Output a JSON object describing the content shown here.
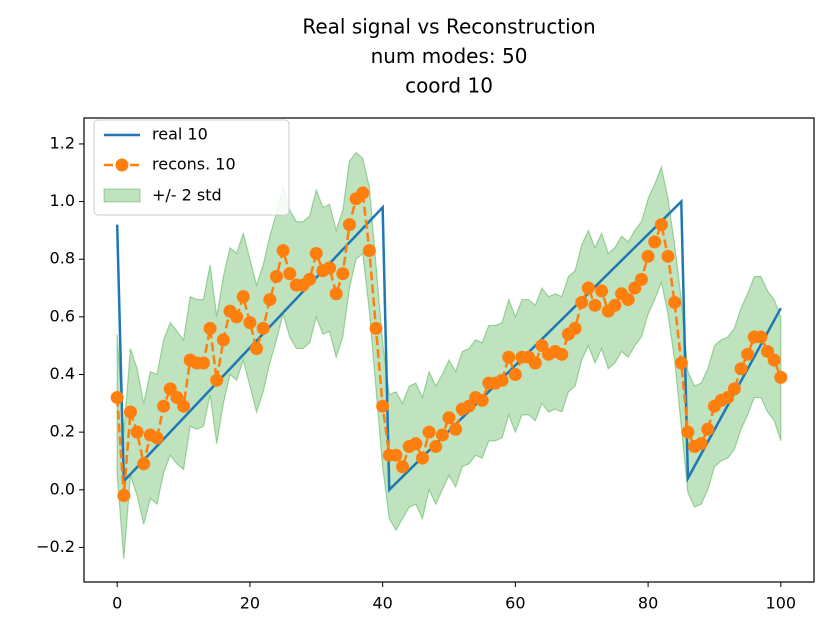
{
  "chart_data": {
    "type": "line",
    "title": [
      "Real signal vs Reconstruction",
      "num modes: 50",
      "coord 10"
    ],
    "x": [
      0,
      1,
      2,
      3,
      4,
      5,
      6,
      7,
      8,
      9,
      10,
      11,
      12,
      13,
      14,
      15,
      16,
      17,
      18,
      19,
      20,
      21,
      22,
      23,
      24,
      25,
      26,
      27,
      28,
      29,
      30,
      31,
      32,
      33,
      34,
      35,
      36,
      37,
      38,
      39,
      40,
      41,
      42,
      43,
      44,
      45,
      46,
      47,
      48,
      49,
      50,
      51,
      52,
      53,
      54,
      55,
      56,
      57,
      58,
      59,
      60,
      61,
      62,
      63,
      64,
      65,
      66,
      67,
      68,
      69,
      70,
      71,
      72,
      73,
      74,
      75,
      76,
      77,
      78,
      79,
      80,
      81,
      82,
      83,
      84,
      85,
      86,
      87,
      88,
      89,
      90,
      91,
      92,
      93,
      94,
      95,
      96,
      97,
      98,
      99,
      100
    ],
    "series": [
      {
        "name": "real 10",
        "color": "#1f77b4",
        "x": [
          0,
          1,
          40,
          41,
          85,
          86,
          100
        ],
        "values": [
          0.92,
          0.03,
          0.98,
          0.0,
          1.0,
          0.04,
          0.63
        ]
      },
      {
        "name": "recons. 10",
        "color": "#ff7f0e",
        "linestyle": "dashed",
        "marker": "o",
        "values": [
          0.32,
          -0.02,
          0.27,
          0.2,
          0.09,
          0.19,
          0.18,
          0.29,
          0.35,
          0.32,
          0.29,
          0.45,
          0.44,
          0.44,
          0.56,
          0.38,
          0.52,
          0.62,
          0.6,
          0.67,
          0.58,
          0.49,
          0.56,
          0.66,
          0.74,
          0.83,
          0.75,
          0.71,
          0.71,
          0.73,
          0.82,
          0.76,
          0.77,
          0.68,
          0.75,
          0.92,
          1.01,
          1.03,
          0.83,
          0.56,
          0.29,
          0.12,
          0.12,
          0.08,
          0.15,
          0.16,
          0.11,
          0.2,
          0.15,
          0.19,
          0.25,
          0.21,
          0.28,
          0.29,
          0.32,
          0.31,
          0.37,
          0.37,
          0.38,
          0.46,
          0.4,
          0.46,
          0.46,
          0.44,
          0.5,
          0.47,
          0.48,
          0.47,
          0.54,
          0.56,
          0.65,
          0.7,
          0.64,
          0.69,
          0.62,
          0.64,
          0.68,
          0.66,
          0.7,
          0.73,
          0.81,
          0.86,
          0.92,
          0.81,
          0.65,
          0.44,
          0.2,
          0.15,
          0.16,
          0.21,
          0.29,
          0.31,
          0.32,
          0.35,
          0.42,
          0.47,
          0.53,
          0.53,
          0.48,
          0.45,
          0.39
        ]
      }
    ],
    "band": {
      "name": "+/- 2 std",
      "color": "#2ca02c",
      "lower": [
        0.05,
        -0.24,
        0.05,
        -0.02,
        -0.12,
        -0.03,
        -0.05,
        0.06,
        0.12,
        0.09,
        0.07,
        0.22,
        0.21,
        0.22,
        0.33,
        0.16,
        0.3,
        0.4,
        0.38,
        0.45,
        0.36,
        0.27,
        0.34,
        0.44,
        0.52,
        0.61,
        0.53,
        0.49,
        0.49,
        0.51,
        0.6,
        0.54,
        0.55,
        0.46,
        0.53,
        0.7,
        0.8,
        0.82,
        0.62,
        0.35,
        0.08,
        -0.1,
        -0.14,
        -0.1,
        -0.06,
        -0.05,
        -0.1,
        0.0,
        -0.05,
        0.0,
        0.05,
        0.01,
        0.08,
        0.09,
        0.12,
        0.11,
        0.17,
        0.17,
        0.18,
        0.26,
        0.2,
        0.26,
        0.26,
        0.24,
        0.3,
        0.27,
        0.28,
        0.27,
        0.34,
        0.36,
        0.45,
        0.5,
        0.44,
        0.49,
        0.42,
        0.44,
        0.48,
        0.46,
        0.5,
        0.53,
        0.61,
        0.66,
        0.72,
        0.61,
        0.45,
        0.22,
        -0.01,
        -0.06,
        -0.05,
        0.0,
        0.08,
        0.1,
        0.11,
        0.14,
        0.21,
        0.26,
        0.32,
        0.32,
        0.27,
        0.24,
        0.17
      ],
      "upper": [
        0.54,
        0.2,
        0.49,
        0.42,
        0.3,
        0.41,
        0.4,
        0.52,
        0.58,
        0.55,
        0.52,
        0.67,
        0.66,
        0.66,
        0.78,
        0.6,
        0.74,
        0.84,
        0.82,
        0.89,
        0.8,
        0.71,
        0.78,
        0.88,
        0.96,
        1.05,
        0.97,
        0.93,
        0.93,
        0.95,
        1.04,
        0.98,
        0.99,
        0.9,
        0.97,
        1.14,
        1.17,
        1.15,
        1.05,
        0.78,
        0.51,
        0.33,
        0.34,
        0.3,
        0.36,
        0.37,
        0.32,
        0.41,
        0.36,
        0.4,
        0.45,
        0.41,
        0.48,
        0.49,
        0.52,
        0.51,
        0.57,
        0.57,
        0.58,
        0.66,
        0.6,
        0.66,
        0.66,
        0.64,
        0.7,
        0.67,
        0.68,
        0.67,
        0.74,
        0.76,
        0.85,
        0.9,
        0.84,
        0.89,
        0.82,
        0.84,
        0.88,
        0.86,
        0.9,
        0.93,
        1.01,
        1.06,
        1.12,
        1.01,
        0.85,
        0.66,
        0.41,
        0.36,
        0.37,
        0.42,
        0.5,
        0.52,
        0.53,
        0.56,
        0.63,
        0.68,
        0.74,
        0.74,
        0.69,
        0.66,
        0.6
      ]
    },
    "xlim": [
      -5,
      105
    ],
    "xticks": [
      0,
      20,
      40,
      60,
      80,
      100
    ],
    "ylim": [
      -0.32,
      1.29
    ],
    "yticks": [
      {
        "value": -0.2,
        "label": "−0.2"
      },
      {
        "value": 0.0,
        "label": "0.0"
      },
      0.2,
      0.4,
      0.6,
      0.8,
      {
        "value": 1.0,
        "label": "1.0"
      },
      1.2
    ],
    "grid": false,
    "legend": "upper left"
  }
}
